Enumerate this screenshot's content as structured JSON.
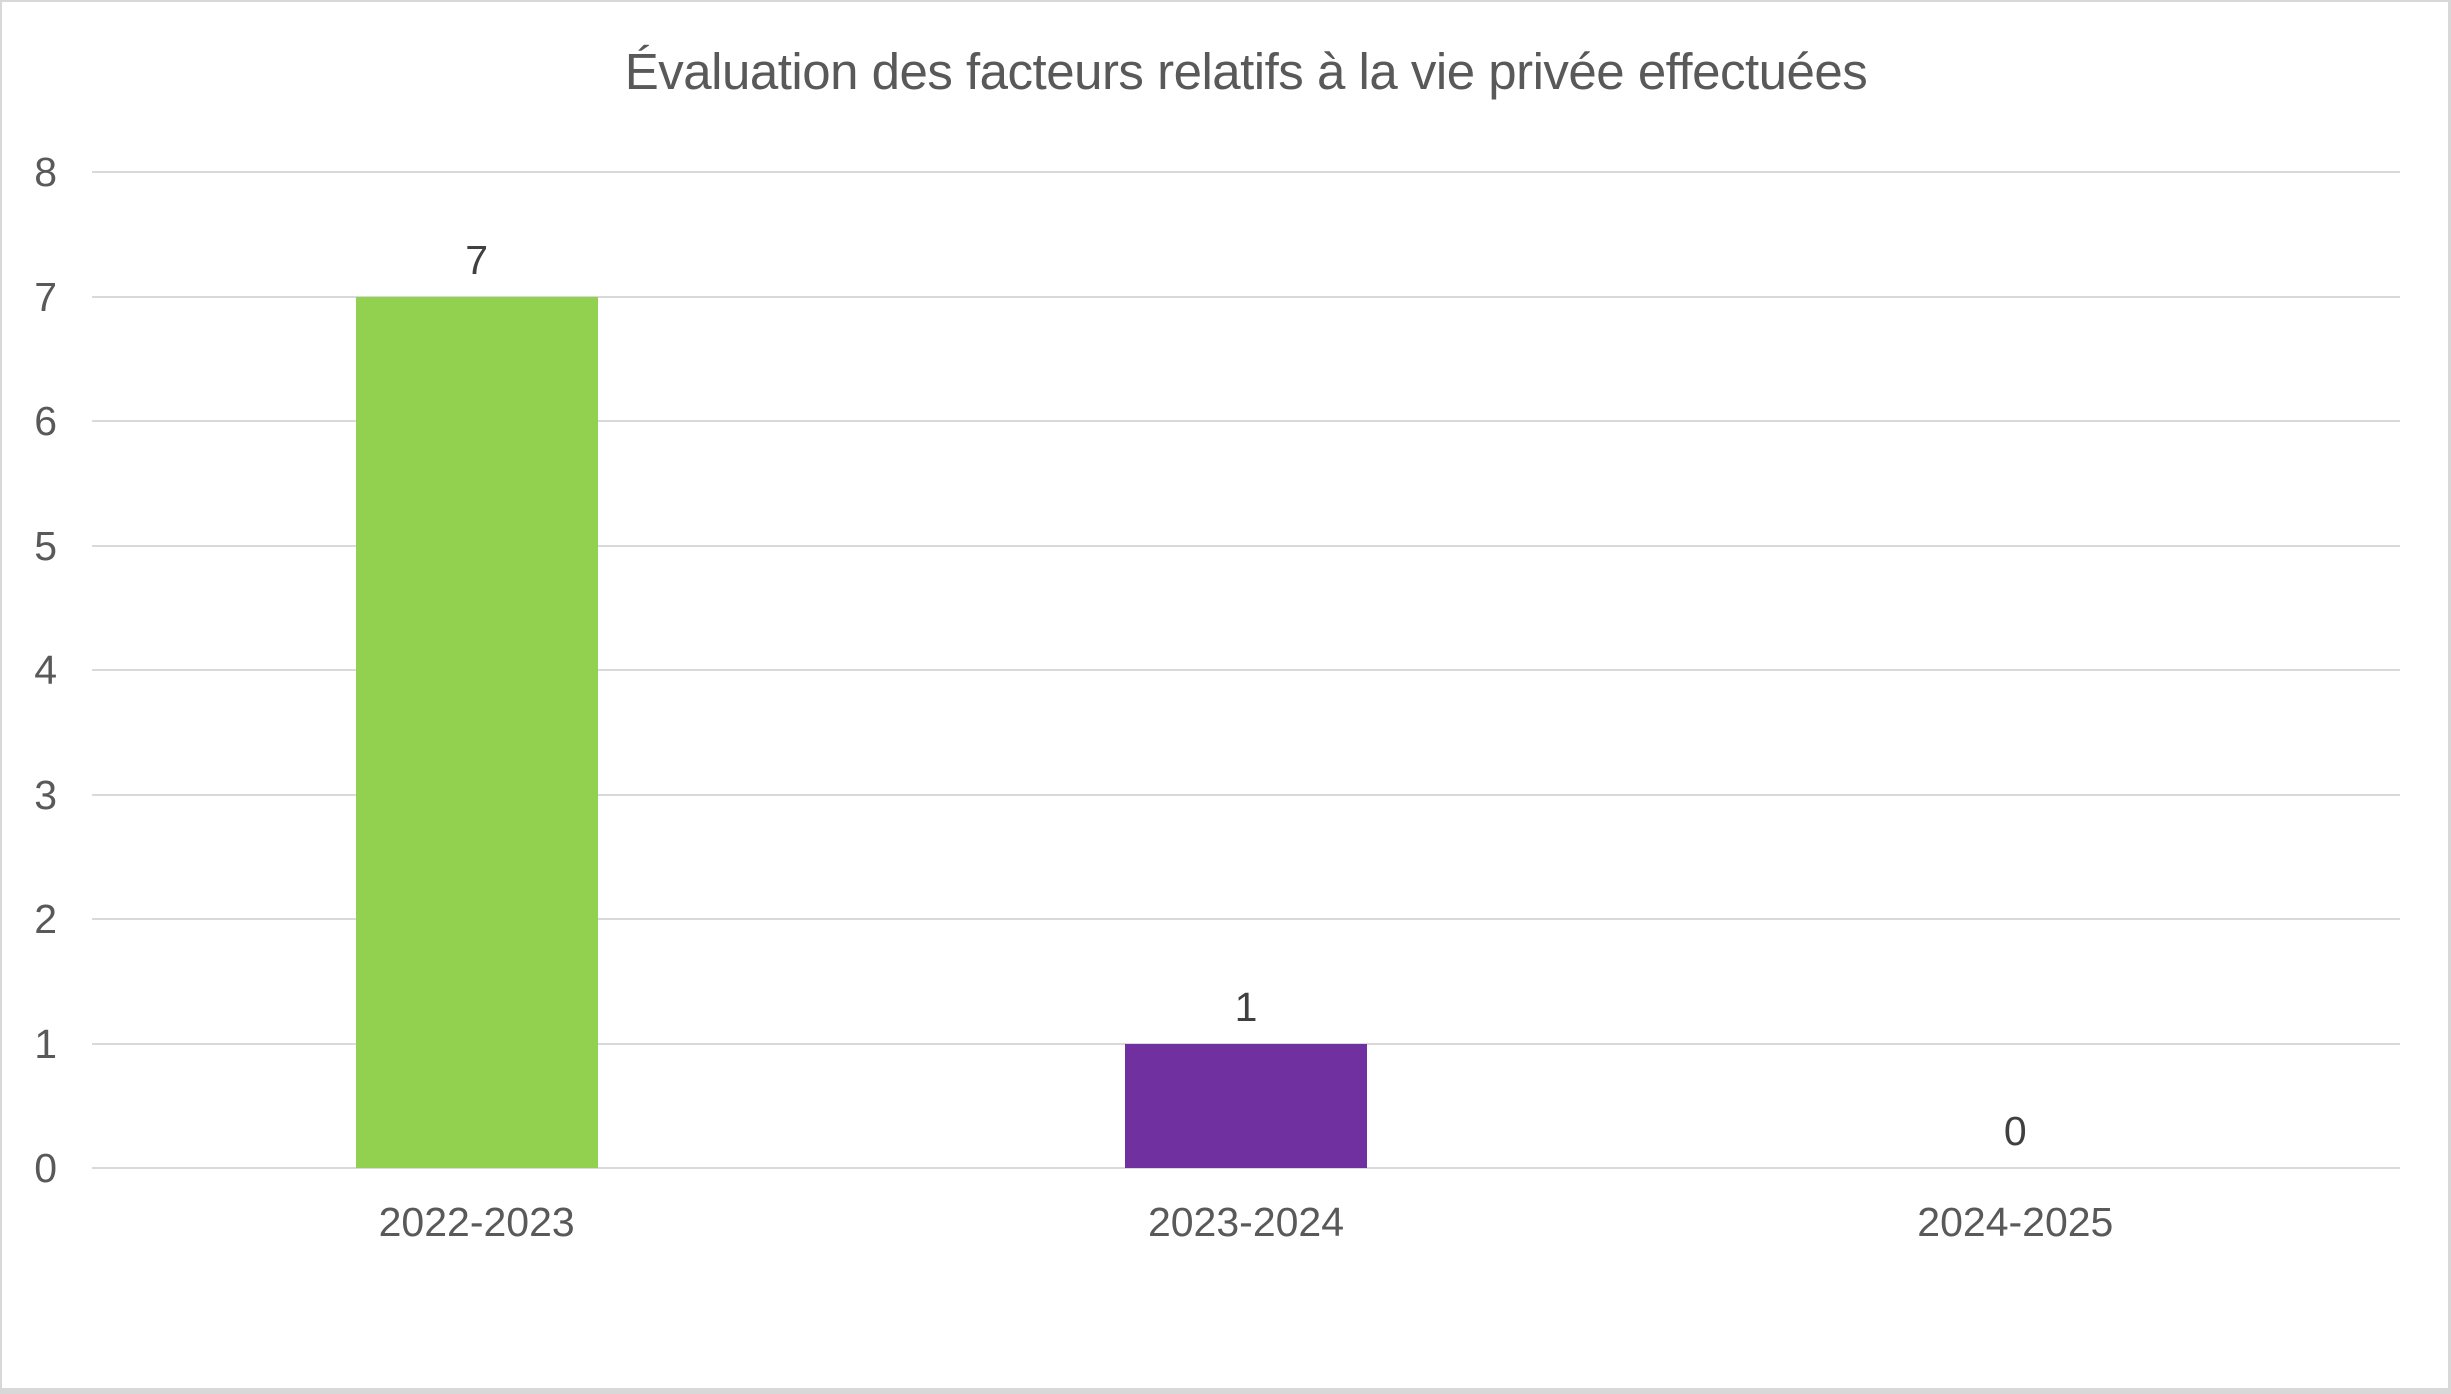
{
  "chart_data": {
    "type": "bar",
    "title": "Évaluation des facteurs relatifs à la vie privée effectuées",
    "categories": [
      "2022-2023",
      "2023-2024",
      "2024-2025"
    ],
    "values": [
      7,
      1,
      0
    ],
    "data_labels": [
      "7",
      "1",
      "0"
    ],
    "bar_colors": [
      "#92D050",
      "#7030A0",
      "#92D050"
    ],
    "xlabel": "",
    "ylabel": "",
    "ylim": [
      0,
      8
    ],
    "ytick_step": 1,
    "ytick_labels": [
      "0",
      "1",
      "2",
      "3",
      "4",
      "5",
      "6",
      "7",
      "8"
    ],
    "grid": true,
    "legend": false
  },
  "colors": {
    "background": "#FFFFFF",
    "border": "#D8D8D8",
    "gridline": "#D9D9D9",
    "title_text": "#595959",
    "axis_text": "#595959",
    "data_label_text": "#404040",
    "bar_green": "#92D050",
    "bar_purple": "#7030A0"
  }
}
